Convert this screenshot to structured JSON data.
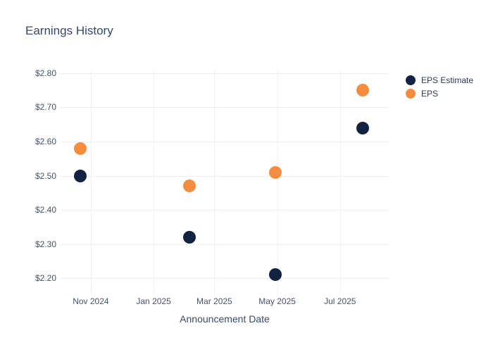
{
  "chart_data": {
    "type": "scatter",
    "title": "Earnings History",
    "xlabel": "Announcement Date",
    "ylabel": "",
    "x": [
      "2024-10-22",
      "2025-02-05",
      "2025-04-29",
      "2025-07-23"
    ],
    "series": [
      {
        "name": "EPS Estimate",
        "color": "#112340",
        "values": [
          2.5,
          2.32,
          2.21,
          2.64
        ]
      },
      {
        "name": "EPS",
        "color": "#f58d41",
        "values": [
          2.58,
          2.47,
          2.51,
          2.75
        ]
      }
    ],
    "x_ticks": [
      {
        "label": "Nov 2024",
        "date": "2024-11-01"
      },
      {
        "label": "Jan 2025",
        "date": "2025-01-01"
      },
      {
        "label": "Mar 2025",
        "date": "2025-03-01"
      },
      {
        "label": "May 2025",
        "date": "2025-05-01"
      },
      {
        "label": "Jul 2025",
        "date": "2025-07-01"
      }
    ],
    "y_ticks": [
      {
        "label": "$2.80",
        "value": 2.8
      },
      {
        "label": "$2.70",
        "value": 2.7
      },
      {
        "label": "$2.60",
        "value": 2.6
      },
      {
        "label": "$2.50",
        "value": 2.5
      },
      {
        "label": "$2.40",
        "value": 2.4
      },
      {
        "label": "$2.30",
        "value": 2.3
      },
      {
        "label": "$2.20",
        "value": 2.2
      }
    ],
    "x_range": [
      "2024-10-02",
      "2025-08-18"
    ],
    "y_range": [
      2.155,
      2.81
    ],
    "grid": true,
    "legend_position": "right",
    "background": "#ffffff"
  }
}
